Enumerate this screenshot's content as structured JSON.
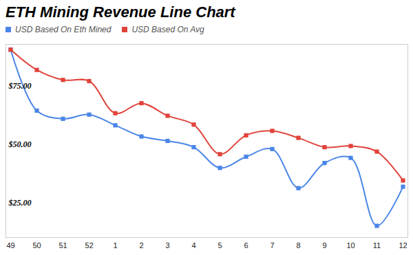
{
  "chart_data": {
    "type": "line",
    "title": "ETH Mining Revenue Line Chart",
    "categories": [
      "49",
      "50",
      "51",
      "52",
      "1",
      "2",
      "3",
      "4",
      "5",
      "6",
      "7",
      "8",
      "9",
      "10",
      "11",
      "12"
    ],
    "series": [
      {
        "name": "USD Based On Eth Mined",
        "color": "#4a86e8",
        "marker": "square",
        "values": [
          90.7,
          64.5,
          61,
          62.8,
          58.2,
          53.4,
          51.5,
          48.8,
          39.9,
          44.7,
          48,
          31.2,
          42,
          44.2,
          15,
          31.8
        ]
      },
      {
        "name": "USD Based On Avg",
        "color": "#e0433a",
        "marker": "square",
        "values": [
          90.7,
          82,
          77.7,
          77.2,
          63.4,
          67.7,
          62.3,
          58.5,
          45.8,
          53.9,
          55.8,
          52.8,
          48.8,
          49.3,
          46.9,
          34.5
        ]
      }
    ],
    "ylim": [
      10,
      93
    ],
    "yticks": [
      {
        "value": 25,
        "label": "$25.00"
      },
      {
        "value": 50,
        "label": "$50.00"
      },
      {
        "value": 75,
        "label": "$75.00"
      }
    ],
    "grid": false,
    "legend": "top-left"
  }
}
